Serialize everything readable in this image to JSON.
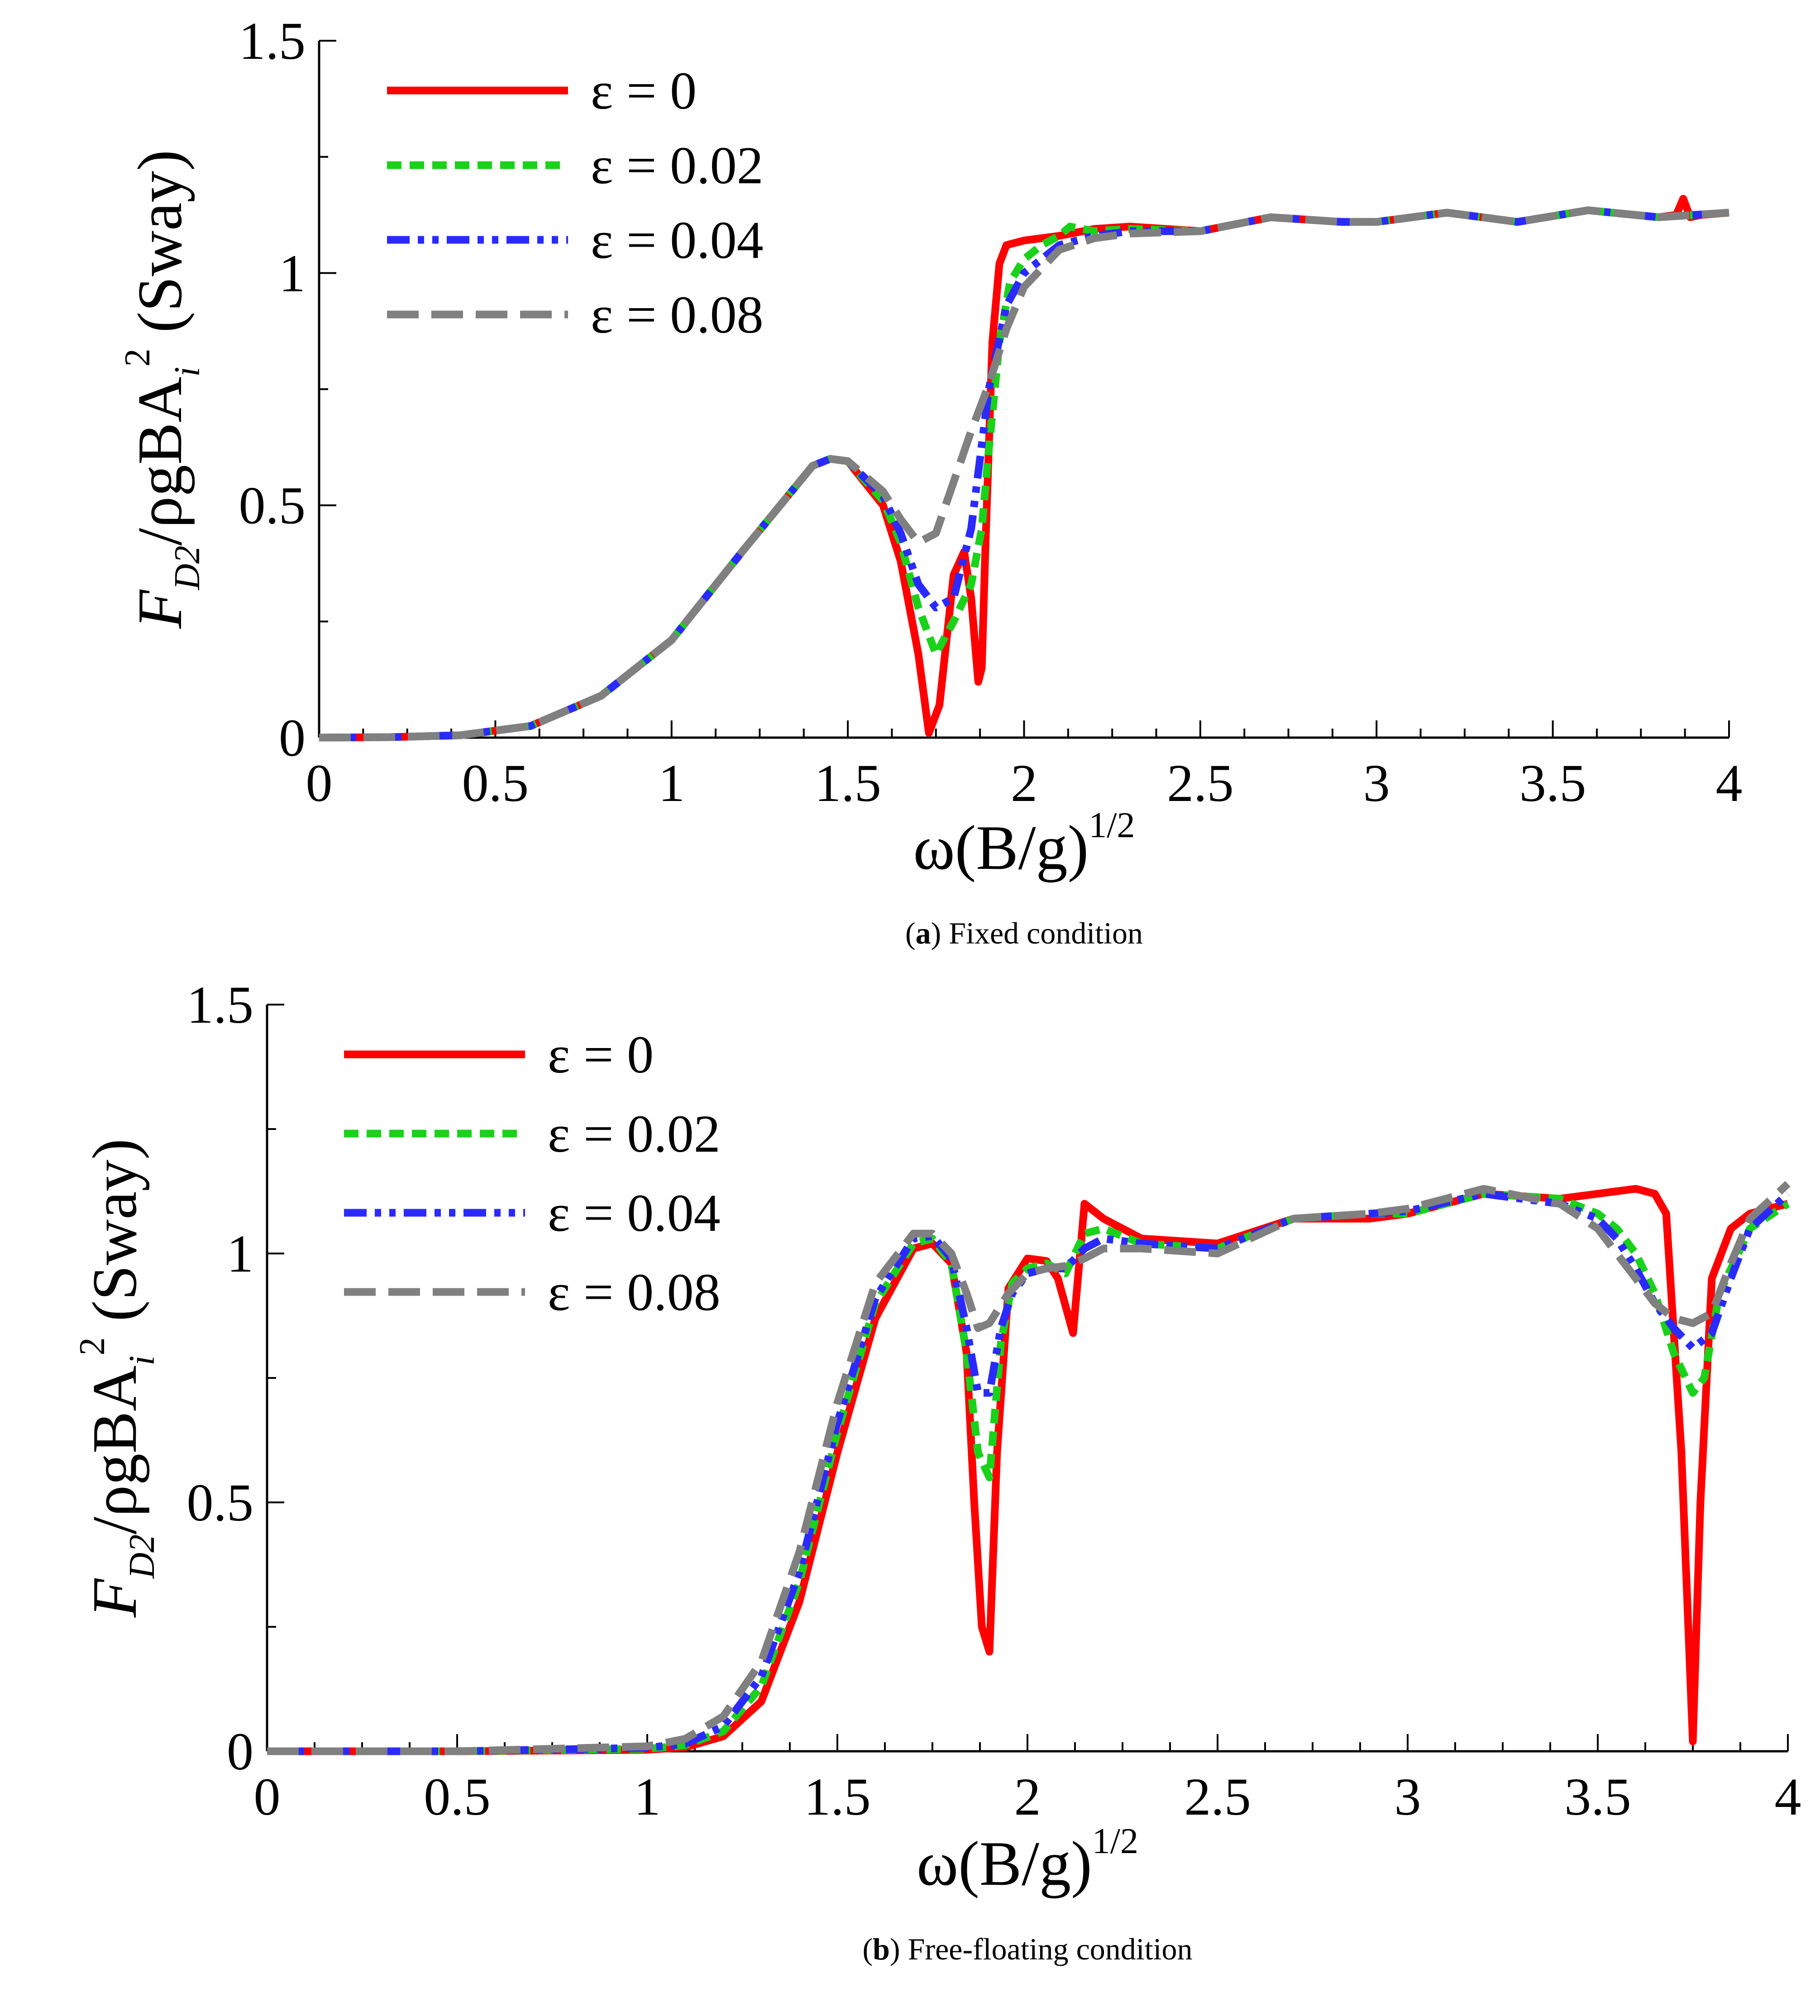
{
  "chart_data": [
    {
      "type": "line",
      "panel": "a",
      "caption_letter": "a",
      "caption_text": "Fixed condition",
      "xlabel": "ω(B/g)^1/2",
      "ylabel": "F_D2/ρgBA_i^2 (Sway)",
      "xlim": [
        0,
        4
      ],
      "ylim": [
        0,
        1.5
      ],
      "x_ticks": [
        "0",
        "0.5",
        "1",
        "1.5",
        "2",
        "2.5",
        "3",
        "3.5",
        "4"
      ],
      "y_ticks": [
        "0",
        "0.5",
        "1",
        "1.5"
      ],
      "legend_position": "top-left",
      "series": [
        {
          "name": "ε = 0",
          "color": "#ff0000",
          "style": "solid",
          "x": [
            0,
            0.2,
            0.4,
            0.6,
            0.8,
            1.0,
            1.2,
            1.4,
            1.45,
            1.5,
            1.6,
            1.65,
            1.7,
            1.73,
            1.76,
            1.8,
            1.83,
            1.85,
            1.87,
            1.88,
            1.89,
            1.91,
            1.93,
            1.95,
            2.0,
            2.1,
            2.2,
            2.3,
            2.5,
            2.7,
            2.9,
            3.0,
            3.2,
            3.4,
            3.6,
            3.8,
            3.85,
            3.87,
            3.89,
            3.92,
            4.0
          ],
          "y": [
            0,
            0.001,
            0.005,
            0.025,
            0.09,
            0.21,
            0.4,
            0.585,
            0.6,
            0.595,
            0.5,
            0.38,
            0.18,
            0.01,
            0.07,
            0.35,
            0.4,
            0.3,
            0.12,
            0.15,
            0.4,
            0.85,
            1.02,
            1.06,
            1.07,
            1.08,
            1.095,
            1.1,
            1.09,
            1.12,
            1.11,
            1.11,
            1.13,
            1.11,
            1.135,
            1.12,
            1.125,
            1.16,
            1.12,
            1.125,
            1.13
          ]
        },
        {
          "name": "ε = 0.02",
          "color": "#19d219",
          "style": "dotted",
          "x": [
            0,
            0.2,
            0.4,
            0.6,
            0.8,
            1.0,
            1.2,
            1.4,
            1.45,
            1.5,
            1.6,
            1.65,
            1.7,
            1.75,
            1.8,
            1.85,
            1.88,
            1.9,
            1.93,
            1.96,
            2.0,
            2.05,
            2.1,
            2.13,
            2.2,
            2.3,
            2.5,
            2.7,
            2.9,
            3.0,
            3.2,
            3.4,
            3.6,
            3.8,
            3.9,
            4.0
          ],
          "y": [
            0,
            0.001,
            0.005,
            0.025,
            0.09,
            0.21,
            0.4,
            0.585,
            0.6,
            0.595,
            0.51,
            0.42,
            0.28,
            0.18,
            0.25,
            0.33,
            0.45,
            0.62,
            0.85,
            0.98,
            1.03,
            1.06,
            1.08,
            1.1,
            1.09,
            1.095,
            1.09,
            1.12,
            1.11,
            1.11,
            1.13,
            1.11,
            1.135,
            1.12,
            1.125,
            1.13
          ]
        },
        {
          "name": "ε = 0.04",
          "color": "#2a2aff",
          "style": "dashdotdot",
          "x": [
            0,
            0.2,
            0.4,
            0.6,
            0.8,
            1.0,
            1.2,
            1.4,
            1.45,
            1.5,
            1.6,
            1.65,
            1.7,
            1.75,
            1.8,
            1.85,
            1.9,
            1.95,
            2.0,
            2.1,
            2.2,
            2.3,
            2.5,
            2.7,
            2.9,
            3.0,
            3.2,
            3.4,
            3.6,
            3.8,
            3.9,
            4.0
          ],
          "y": [
            0,
            0.001,
            0.005,
            0.025,
            0.09,
            0.21,
            0.4,
            0.585,
            0.6,
            0.595,
            0.52,
            0.44,
            0.33,
            0.28,
            0.3,
            0.45,
            0.75,
            0.93,
            1.0,
            1.06,
            1.08,
            1.09,
            1.09,
            1.12,
            1.11,
            1.11,
            1.13,
            1.11,
            1.135,
            1.12,
            1.125,
            1.13
          ]
        },
        {
          "name": "ε = 0.08",
          "color": "#808080",
          "style": "dashed",
          "x": [
            0,
            0.2,
            0.4,
            0.6,
            0.8,
            1.0,
            1.2,
            1.4,
            1.45,
            1.5,
            1.6,
            1.65,
            1.7,
            1.75,
            1.8,
            1.85,
            1.9,
            1.95,
            2.0,
            2.1,
            2.2,
            2.3,
            2.5,
            2.7,
            2.9,
            3.0,
            3.2,
            3.4,
            3.6,
            3.8,
            3.9,
            4.0
          ],
          "y": [
            0,
            0.001,
            0.005,
            0.025,
            0.09,
            0.21,
            0.4,
            0.585,
            0.6,
            0.595,
            0.53,
            0.47,
            0.42,
            0.44,
            0.55,
            0.66,
            0.76,
            0.88,
            0.97,
            1.05,
            1.075,
            1.085,
            1.09,
            1.12,
            1.11,
            1.11,
            1.13,
            1.11,
            1.135,
            1.12,
            1.125,
            1.13
          ]
        }
      ]
    },
    {
      "type": "line",
      "panel": "b",
      "caption_letter": "b",
      "caption_text": "Free-floating condition",
      "xlabel": "ω(B/g)^1/2",
      "ylabel": "F_D2/ρgBA_i^2 (Sway)",
      "xlim": [
        0,
        4
      ],
      "ylim": [
        0,
        1.5
      ],
      "x_ticks": [
        "0",
        "0.5",
        "1",
        "1.5",
        "2",
        "2.5",
        "3",
        "3.5",
        "4"
      ],
      "y_ticks": [
        "0",
        "0.5",
        "1",
        "1.5"
      ],
      "legend_position": "top-left",
      "series": [
        {
          "name": "ε = 0",
          "color": "#ff0000",
          "style": "solid",
          "x": [
            0,
            0.5,
            1.0,
            1.1,
            1.2,
            1.3,
            1.4,
            1.5,
            1.6,
            1.7,
            1.75,
            1.8,
            1.84,
            1.86,
            1.88,
            1.9,
            1.92,
            1.95,
            2.0,
            2.05,
            2.08,
            2.12,
            2.15,
            2.2,
            2.3,
            2.5,
            2.7,
            2.9,
            3.0,
            3.2,
            3.4,
            3.5,
            3.6,
            3.65,
            3.68,
            3.72,
            3.75,
            3.77,
            3.8,
            3.85,
            3.9,
            4.0
          ],
          "y": [
            0,
            0,
            0.003,
            0.008,
            0.03,
            0.1,
            0.3,
            0.6,
            0.87,
            1.01,
            1.02,
            0.98,
            0.8,
            0.5,
            0.25,
            0.2,
            0.6,
            0.93,
            0.99,
            0.985,
            0.95,
            0.84,
            1.1,
            1.07,
            1.03,
            1.02,
            1.07,
            1.07,
            1.08,
            1.12,
            1.11,
            1.12,
            1.13,
            1.12,
            1.08,
            0.6,
            0.02,
            0.5,
            0.95,
            1.05,
            1.08,
            1.1
          ]
        },
        {
          "name": "ε = 0.02",
          "color": "#19d219",
          "style": "dotted",
          "x": [
            0,
            0.5,
            1.0,
            1.1,
            1.2,
            1.3,
            1.4,
            1.5,
            1.6,
            1.7,
            1.75,
            1.8,
            1.84,
            1.87,
            1.9,
            1.93,
            1.96,
            2.0,
            2.05,
            2.1,
            2.15,
            2.2,
            2.3,
            2.5,
            2.7,
            2.9,
            3.0,
            3.2,
            3.4,
            3.5,
            3.55,
            3.6,
            3.65,
            3.7,
            3.75,
            3.78,
            3.82,
            3.9,
            4.0
          ],
          "y": [
            0,
            0,
            0.005,
            0.012,
            0.04,
            0.13,
            0.34,
            0.64,
            0.9,
            1.02,
            1.03,
            0.98,
            0.8,
            0.6,
            0.55,
            0.82,
            0.94,
            0.97,
            0.98,
            0.96,
            1.04,
            1.05,
            1.02,
            1.01,
            1.07,
            1.08,
            1.08,
            1.12,
            1.11,
            1.08,
            1.05,
            1.0,
            0.92,
            0.8,
            0.72,
            0.75,
            0.92,
            1.05,
            1.1
          ]
        },
        {
          "name": "ε = 0.04",
          "color": "#2a2aff",
          "style": "dashdotdot",
          "x": [
            0,
            0.5,
            1.0,
            1.1,
            1.2,
            1.3,
            1.4,
            1.5,
            1.6,
            1.7,
            1.75,
            1.8,
            1.84,
            1.87,
            1.9,
            1.93,
            1.96,
            2.0,
            2.05,
            2.1,
            2.15,
            2.2,
            2.3,
            2.5,
            2.7,
            2.9,
            3.0,
            3.2,
            3.4,
            3.5,
            3.55,
            3.6,
            3.65,
            3.7,
            3.75,
            3.8,
            3.85,
            3.9,
            4.0
          ],
          "y": [
            0,
            0,
            0.007,
            0.015,
            0.05,
            0.15,
            0.36,
            0.66,
            0.91,
            1.03,
            1.035,
            0.99,
            0.85,
            0.72,
            0.72,
            0.85,
            0.92,
            0.96,
            0.97,
            0.97,
            1.01,
            1.03,
            1.02,
            1.01,
            1.07,
            1.08,
            1.085,
            1.12,
            1.1,
            1.07,
            1.03,
            0.97,
            0.9,
            0.85,
            0.81,
            0.84,
            0.95,
            1.05,
            1.12
          ]
        },
        {
          "name": "ε = 0.08",
          "color": "#808080",
          "style": "dashed",
          "x": [
            0,
            0.5,
            1.0,
            1.1,
            1.2,
            1.3,
            1.4,
            1.5,
            1.6,
            1.7,
            1.75,
            1.8,
            1.84,
            1.87,
            1.9,
            1.95,
            2.0,
            2.05,
            2.1,
            2.15,
            2.2,
            2.3,
            2.5,
            2.7,
            2.9,
            3.0,
            3.2,
            3.4,
            3.5,
            3.55,
            3.6,
            3.65,
            3.7,
            3.75,
            3.8,
            3.85,
            3.9,
            4.0
          ],
          "y": [
            0,
            0,
            0.01,
            0.025,
            0.07,
            0.18,
            0.4,
            0.7,
            0.94,
            1.04,
            1.04,
            1.0,
            0.92,
            0.85,
            0.86,
            0.92,
            0.96,
            0.97,
            0.975,
            0.99,
            1.01,
            1.01,
            1.0,
            1.07,
            1.08,
            1.09,
            1.13,
            1.1,
            1.05,
            1.0,
            0.95,
            0.9,
            0.87,
            0.86,
            0.88,
            0.98,
            1.07,
            1.14
          ]
        }
      ]
    }
  ]
}
